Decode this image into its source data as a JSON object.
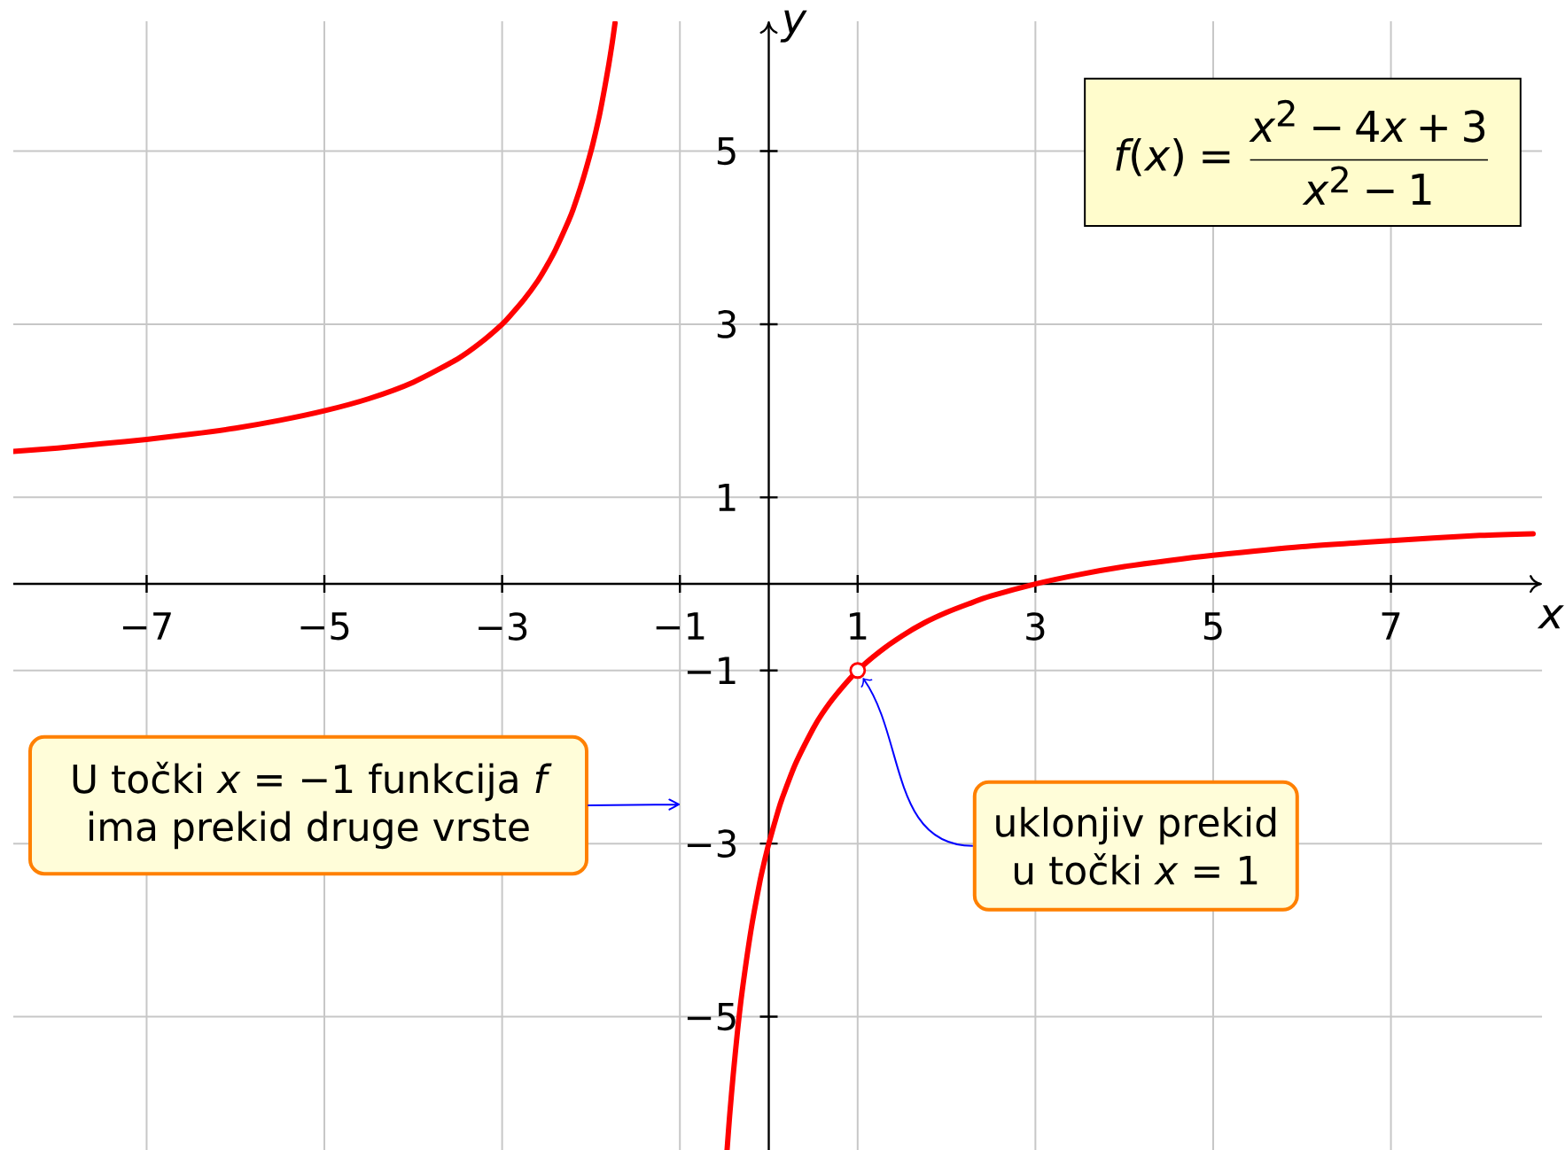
{
  "chart_data": {
    "type": "line",
    "xlabel": "x",
    "ylabel": "y",
    "xlim": [
      -8.5,
      8.7
    ],
    "ylim": [
      -6.55,
      6.5
    ],
    "xticks": [
      {
        "value": -7,
        "label": "−7"
      },
      {
        "value": -5,
        "label": "−5"
      },
      {
        "value": -3,
        "label": "−3"
      },
      {
        "value": -1,
        "label": "−1"
      },
      1,
      3,
      5,
      7
    ],
    "yticks": [
      {
        "value": -5,
        "label": "−5"
      },
      {
        "value": -3,
        "label": "−3"
      },
      {
        "value": -1,
        "label": "−1"
      },
      1,
      3,
      5
    ],
    "grid": true,
    "annotations": [
      "f(x)=\\frac{x^2-4x+3}{x^2-1}",
      "U točki *x* = −1 funkcija *f* ima prekid druge vrste",
      {
        "text": "uklonjiv prekid u točki *x* = 1",
        "x": 1,
        "y": -1
      }
    ],
    "series": [
      {
        "color": "#ff0000",
        "x": [
          -8.5,
          -8,
          -7.5,
          -7,
          -6.5,
          -6,
          -5.5,
          -5,
          -4.5,
          -4,
          -3.5,
          -3.25,
          -3,
          -2.9,
          -2.75,
          -2.6,
          -2.5,
          -2.4,
          -2.25,
          -2.2,
          -2.1,
          -2,
          -1.95,
          -1.9,
          -1.85,
          -1.8,
          -1.76,
          -1.73,
          -1,
          -0.47,
          -0.44,
          -0.4,
          -0.35,
          -0.3,
          -0.2,
          -0.1,
          -0.05,
          0,
          0.1,
          0.15,
          0.3,
          0.5,
          0.6,
          0.75,
          1,
          1.25,
          1.5,
          1.75,
          2,
          2.25,
          2.5,
          3,
          3.5,
          4,
          4.5,
          5,
          6,
          7,
          8,
          8.6
        ],
        "values": [
          1.53,
          1.57,
          1.62,
          1.67,
          1.73,
          1.8,
          1.89,
          2.0,
          2.14,
          2.33,
          2.6,
          2.78,
          3.0,
          3.11,
          3.29,
          3.5,
          3.67,
          3.86,
          4.2,
          4.33,
          4.64,
          5.0,
          5.21,
          5.44,
          5.71,
          6.0,
          6.26,
          6.48,
          null,
          -6.55,
          -6.14,
          -5.67,
          -5.15,
          -4.71,
          -4.0,
          -3.44,
          -3.21,
          -3.0,
          -2.64,
          -2.48,
          -2.08,
          -1.67,
          -1.5,
          -1.29,
          -1.0,
          -0.78,
          -0.6,
          -0.45,
          -0.33,
          -0.23,
          -0.14,
          0,
          0.11,
          0.2,
          0.27,
          0.33,
          0.43,
          0.5,
          0.56,
          0.58
        ]
      },
      {
        "type": "scatter",
        "color": "#ff0000",
        "x": [
          1
        ],
        "values": [
          -1
        ]
      }
    ]
  }
}
